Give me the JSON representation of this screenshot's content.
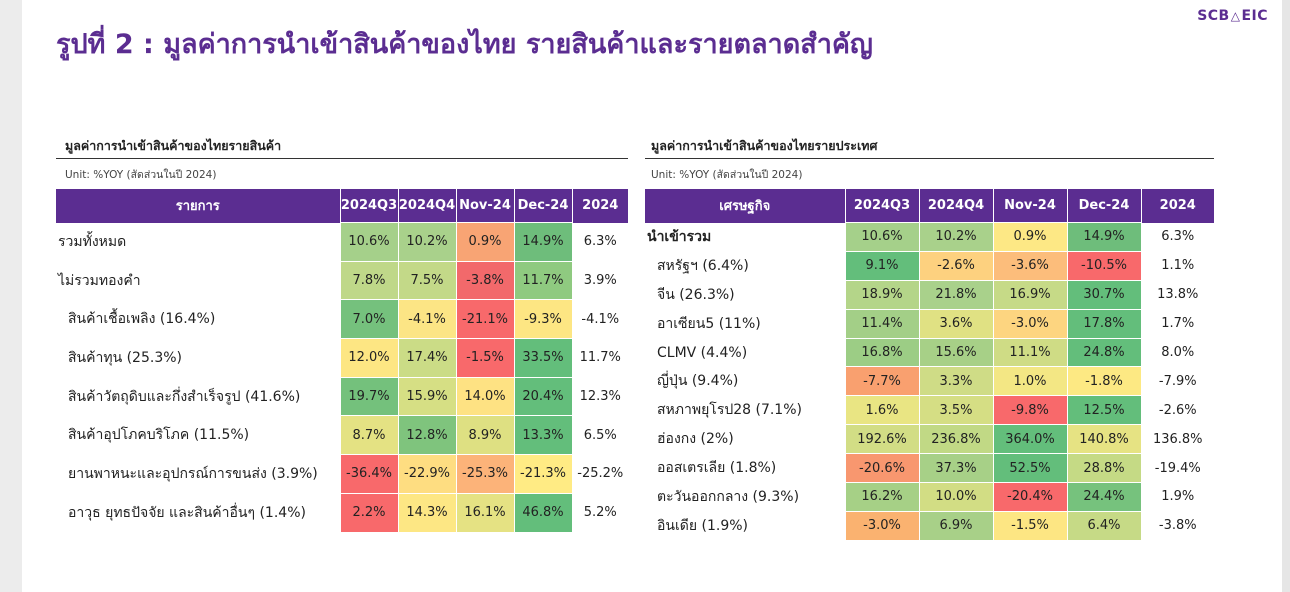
{
  "title": "รูปที่ 2 : มูลค่าการนำเข้าสินค้าของไทย รายสินค้าและรายตลาดสำคัญ",
  "logo": {
    "left": "SCB",
    "mark": "△",
    "right": "EIC"
  },
  "left_table": {
    "subtitle": "มูลค่าการนำเข้าสินค้าของไทยรายสินค้า",
    "unit": "Unit: %YOY (สัดส่วนในปี 2024)",
    "headers": [
      "รายการ",
      "2024Q3",
      "2024Q4",
      "Nov-24",
      "Dec-24",
      "2024"
    ],
    "rows": [
      {
        "label": "รวมทั้งหมด",
        "indent": false,
        "values": [
          "10.6%",
          "10.2%",
          "0.9%",
          "14.9%",
          "6.3%"
        ],
        "colors": [
          "#a5d08a",
          "#a9d18b",
          "#f8a474",
          "#6ebd7b"
        ]
      },
      {
        "label": "ไม่รวมทองคำ",
        "indent": false,
        "values": [
          "7.8%",
          "7.5%",
          "-3.8%",
          "11.7%",
          "3.9%"
        ],
        "colors": [
          "#bfd889",
          "#c3d988",
          "#f2696b",
          "#8fca80"
        ]
      },
      {
        "label": "สินค้าเชื้อเพลิง (16.4%)",
        "indent": true,
        "values": [
          "7.0%",
          "-4.1%",
          "-21.1%",
          "-9.3%",
          "-4.1%"
        ],
        "colors": [
          "#75c17d",
          "#fce585",
          "#f8696b",
          "#fde683"
        ]
      },
      {
        "label": "สินค้าทุน (25.3%)",
        "indent": true,
        "values": [
          "12.0%",
          "17.4%",
          "-1.5%",
          "33.5%",
          "11.7%"
        ],
        "colors": [
          "#fde683",
          "#cbdc86",
          "#f8696b",
          "#63be7b"
        ]
      },
      {
        "label": "สินค้าวัตถุดิบและกึ่งสำเร็จรูป (41.6%)",
        "indent": true,
        "values": [
          "19.7%",
          "15.9%",
          "14.0%",
          "20.4%",
          "12.3%"
        ],
        "colors": [
          "#74c17c",
          "#d6df84",
          "#fee283",
          "#63be7b"
        ]
      },
      {
        "label": "สินค้าอุปโภคบริโภค (11.5%)",
        "indent": true,
        "values": [
          "8.7%",
          "12.8%",
          "8.9%",
          "13.3%",
          "6.5%"
        ],
        "colors": [
          "#e4e283",
          "#7fc47d",
          "#dee082",
          "#63be7b"
        ]
      },
      {
        "label": "ยานพาหนะและอุปกรณ์การขนส่ง (3.9%)",
        "indent": true,
        "values": [
          "-36.4%",
          "-22.9%",
          "-25.3%",
          "-21.3%",
          "-25.2%"
        ],
        "colors": [
          "#f8696b",
          "#fedd81",
          "#fcb379",
          "#ffeb84"
        ]
      },
      {
        "label": "อาวุธ ยุทธปัจจัย และสินค้าอื่นๆ (1.4%)",
        "indent": true,
        "values": [
          "2.2%",
          "14.3%",
          "16.1%",
          "46.8%",
          "5.2%"
        ],
        "colors": [
          "#f8696b",
          "#fde784",
          "#e5e283",
          "#63be7b"
        ]
      }
    ]
  },
  "right_table": {
    "subtitle": "มูลค่าการนำเข้าสินค้าของไทยรายประเทศ",
    "unit": "Unit: %YOY (สัดส่วนในปี 2024)",
    "headers": [
      "เศรษฐกิจ",
      "2024Q3",
      "2024Q4",
      "Nov-24",
      "Dec-24",
      "2024"
    ],
    "rows": [
      {
        "label": "นำเข้ารวม",
        "indent": false,
        "bold": true,
        "values": [
          "10.6%",
          "10.2%",
          "0.9%",
          "14.9%",
          "6.3%"
        ],
        "colors": [
          "#a5d08a",
          "#a9d18b",
          "#fde885",
          "#6ebd7b"
        ]
      },
      {
        "label": "สหรัฐฯ (6.4%)",
        "indent": true,
        "values": [
          "9.1%",
          "-2.6%",
          "-3.6%",
          "-10.5%",
          "1.1%"
        ],
        "colors": [
          "#63be7b",
          "#fdd17f",
          "#fcbd7b",
          "#f8696b"
        ]
      },
      {
        "label": "จีน (26.3%)",
        "indent": true,
        "values": [
          "18.9%",
          "21.8%",
          "16.9%",
          "30.7%",
          "13.8%"
        ],
        "colors": [
          "#b4d589",
          "#a9d18b",
          "#c6da87",
          "#63be7b"
        ]
      },
      {
        "label": "อาเซียน5 (11%)",
        "indent": true,
        "values": [
          "11.4%",
          "3.6%",
          "-3.0%",
          "17.8%",
          "1.7%"
        ],
        "colors": [
          "#a3cf87",
          "#e0e183",
          "#fdd580",
          "#63be7b"
        ]
      },
      {
        "label": "CLMV (4.4%)",
        "indent": true,
        "values": [
          "16.8%",
          "15.6%",
          "11.1%",
          "24.8%",
          "8.0%"
        ],
        "colors": [
          "#9ccd85",
          "#a7d087",
          "#cfdc85",
          "#63be7b"
        ]
      },
      {
        "label": "ญี่ปุ่น (9.4%)",
        "indent": true,
        "values": [
          "-7.7%",
          "3.3%",
          "1.0%",
          "-1.8%",
          "-7.9%"
        ],
        "colors": [
          "#f9a06f",
          "#cfdc86",
          "#f3e784",
          "#fde983"
        ]
      },
      {
        "label": "สหภาพยุโรป28 (7.1%)",
        "indent": true,
        "values": [
          "1.6%",
          "3.5%",
          "-9.8%",
          "12.5%",
          "-2.6%"
        ],
        "colors": [
          "#e9e583",
          "#d5de84",
          "#f8696b",
          "#63be7b"
        ]
      },
      {
        "label": "ฮ่องกง (2%)",
        "indent": true,
        "values": [
          "192.6%",
          "236.8%",
          "364.0%",
          "140.8%",
          "136.8%"
        ],
        "colors": [
          "#d2dd85",
          "#c1d985",
          "#63be7b",
          "#e6e383"
        ]
      },
      {
        "label": "ออสเตรเลีย (1.8%)",
        "indent": true,
        "values": [
          "-20.6%",
          "37.3%",
          "52.5%",
          "28.8%",
          "-19.4%"
        ],
        "colors": [
          "#f8976f",
          "#a7d087",
          "#63be7b",
          "#c5da85"
        ]
      },
      {
        "label": "ตะวันออกกลาง (9.3%)",
        "indent": true,
        "values": [
          "16.2%",
          "10.0%",
          "-20.4%",
          "24.4%",
          "1.9%"
        ],
        "colors": [
          "#a6d086",
          "#d2dd84",
          "#f8696b",
          "#76c27d"
        ]
      },
      {
        "label": "อินเดีย (1.9%)",
        "indent": true,
        "values": [
          "-3.0%",
          "6.9%",
          "-1.5%",
          "6.4%",
          "-3.8%"
        ],
        "colors": [
          "#fab270",
          "#a8d088",
          "#fde683",
          "#c6da86"
        ]
      }
    ]
  }
}
